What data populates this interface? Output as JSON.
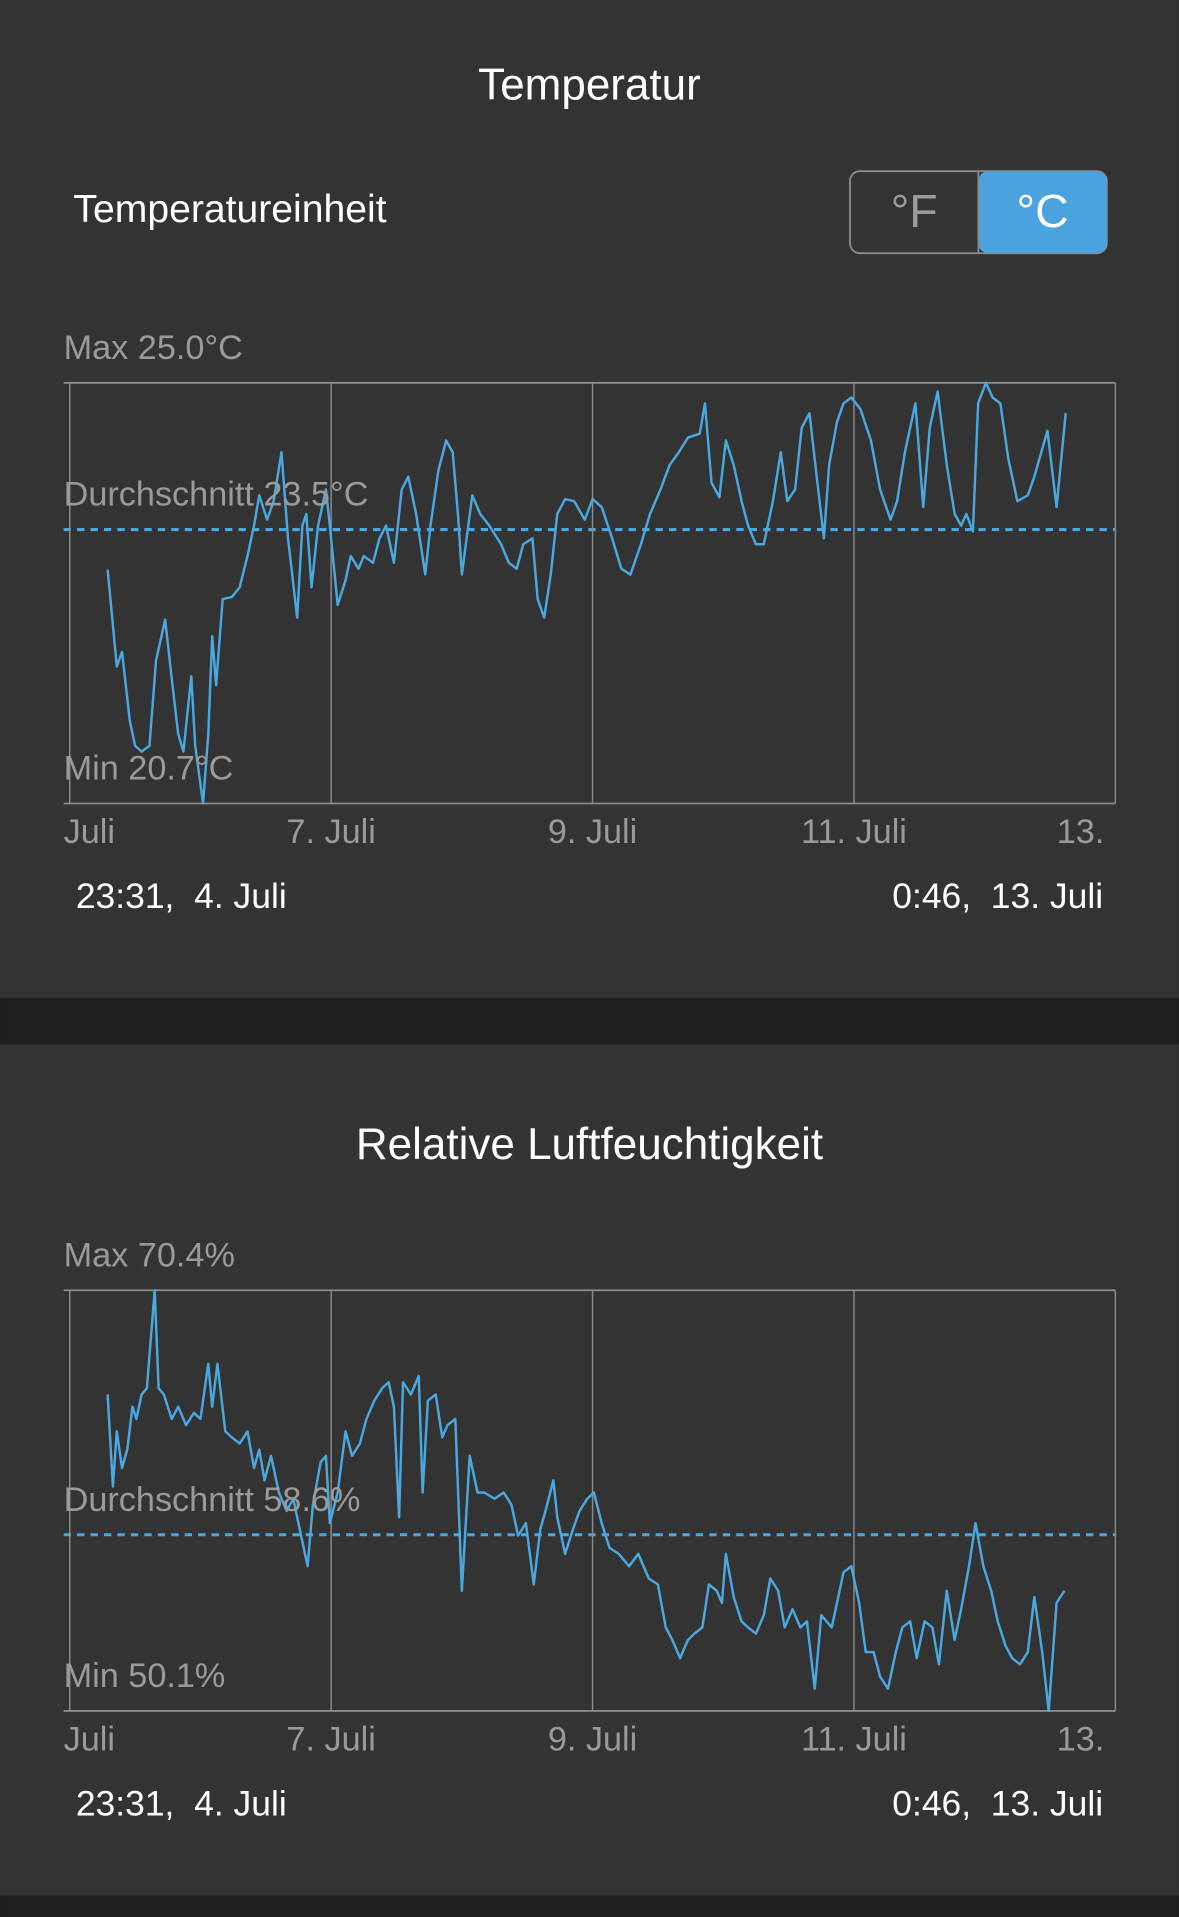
{
  "unit_setting": {
    "label": "Temperatureinheit",
    "options": [
      "°F",
      "°C"
    ],
    "selected": "°C"
  },
  "chart_data": [
    {
      "type": "line",
      "title": "Temperatur",
      "xlim": [
        5,
        13
      ],
      "xticks": [
        {
          "value": 5,
          "label": "Juli"
        },
        {
          "value": 7,
          "label": "7. Juli"
        },
        {
          "value": 9,
          "label": "9. Juli"
        },
        {
          "value": 11,
          "label": "11. Juli"
        },
        {
          "value": 13,
          "label": "13."
        }
      ],
      "ylim": [
        20.7,
        25.0
      ],
      "yticks": [
        {
          "value": 20.7,
          "label": "Min 20.7°C"
        },
        {
          "value": 23.5,
          "label": "Durchschnitt 23.5°C"
        },
        {
          "value": 25.0,
          "label": "Max 25.0°C"
        }
      ],
      "range_start": "23:31,  4. Juli",
      "range_end": "0:46,  13. Juli",
      "series": [
        {
          "color": "#4aa8e0",
          "x": [
            5.29,
            5.36,
            5.4,
            5.46,
            5.5,
            5.55,
            5.61,
            5.66,
            5.73,
            5.78,
            5.83,
            5.87,
            5.93,
            5.96,
            6.02,
            6.06,
            6.09,
            6.12,
            6.17,
            6.24,
            6.3,
            6.36,
            6.41,
            6.45,
            6.51,
            6.56,
            6.62,
            6.67,
            6.74,
            6.78,
            6.81,
            6.85,
            6.9,
            6.96,
            6.99,
            7.05,
            7.11,
            7.15,
            7.21,
            7.25,
            7.32,
            7.37,
            7.42,
            7.48,
            7.54,
            7.59,
            7.65,
            7.72,
            7.76,
            7.82,
            7.88,
            7.93,
            7.97,
            8.0,
            8.08,
            8.14,
            8.21,
            8.3,
            8.36,
            8.42,
            8.47,
            8.54,
            8.58,
            8.63,
            8.68,
            8.73,
            8.79,
            8.86,
            8.94,
            9.0,
            9.07,
            9.15,
            9.22,
            9.29,
            9.37,
            9.44,
            9.52,
            9.59,
            9.66,
            9.73,
            9.82,
            9.86,
            9.91,
            9.97,
            10.02,
            10.08,
            10.14,
            10.19,
            10.25,
            10.31,
            10.38,
            10.44,
            10.49,
            10.55,
            10.6,
            10.66,
            10.72,
            10.77,
            10.81,
            10.87,
            10.92,
            10.98,
            11.05,
            11.13,
            11.2,
            11.28,
            11.33,
            11.39,
            11.47,
            11.53,
            11.58,
            11.64,
            11.71,
            11.77,
            11.82,
            11.86,
            11.91,
            11.95,
            12.01,
            12.06,
            12.12,
            12.18,
            12.25,
            12.33,
            12.38,
            12.48,
            12.55,
            12.62
          ],
          "values": [
            23.09,
            22.1,
            22.25,
            21.54,
            21.29,
            21.23,
            21.29,
            22.16,
            22.58,
            21.98,
            21.41,
            21.23,
            22.0,
            21.29,
            20.7,
            21.41,
            22.41,
            21.91,
            22.79,
            22.81,
            22.91,
            23.23,
            23.54,
            23.85,
            23.6,
            23.79,
            24.29,
            23.41,
            22.6,
            23.54,
            23.66,
            22.91,
            23.54,
            23.91,
            23.54,
            22.73,
            22.98,
            23.23,
            23.1,
            23.23,
            23.16,
            23.41,
            23.54,
            23.16,
            23.91,
            24.04,
            23.66,
            23.04,
            23.54,
            24.1,
            24.41,
            24.29,
            23.66,
            23.04,
            23.85,
            23.66,
            23.54,
            23.35,
            23.16,
            23.1,
            23.35,
            23.41,
            22.79,
            22.6,
            23.04,
            23.66,
            23.81,
            23.79,
            23.6,
            23.81,
            23.73,
            23.41,
            23.1,
            23.04,
            23.35,
            23.66,
            23.91,
            24.16,
            24.29,
            24.44,
            24.48,
            24.79,
            23.98,
            23.83,
            24.41,
            24.16,
            23.79,
            23.54,
            23.35,
            23.35,
            23.79,
            24.29,
            23.79,
            23.91,
            24.54,
            24.69,
            23.98,
            23.41,
            24.16,
            24.6,
            24.79,
            24.85,
            24.73,
            24.41,
            23.91,
            23.6,
            23.79,
            24.29,
            24.79,
            23.73,
            24.54,
            24.91,
            24.16,
            23.66,
            23.54,
            23.66,
            23.48,
            24.79,
            25.0,
            24.85,
            24.79,
            24.23,
            23.79,
            23.85,
            24.04,
            24.51,
            23.73,
            24.69
          ]
        }
      ]
    },
    {
      "type": "line",
      "title": "Relative Luftfeuchtigkeit",
      "xlim": [
        5,
        13
      ],
      "xticks": [
        {
          "value": 5,
          "label": "Juli"
        },
        {
          "value": 7,
          "label": "7. Juli"
        },
        {
          "value": 9,
          "label": "9. Juli"
        },
        {
          "value": 11,
          "label": "11. Juli"
        },
        {
          "value": 13,
          "label": "13."
        }
      ],
      "ylim": [
        50.1,
        70.4
      ],
      "yticks": [
        {
          "value": 50.1,
          "label": "Min 50.1%"
        },
        {
          "value": 58.6,
          "label": "Durchschnitt 58.6%"
        },
        {
          "value": 70.4,
          "label": "Max 70.4%"
        }
      ],
      "range_start": "23:31,  4. Juli",
      "range_end": "0:46,  13. Juli",
      "series": [
        {
          "color": "#4aa8e0",
          "x": [
            5.29,
            5.33,
            5.36,
            5.4,
            5.44,
            5.48,
            5.51,
            5.55,
            5.59,
            5.65,
            5.68,
            5.72,
            5.78,
            5.83,
            5.89,
            5.95,
            6.0,
            6.06,
            6.09,
            6.13,
            6.19,
            6.24,
            6.3,
            6.36,
            6.41,
            6.45,
            6.49,
            6.54,
            6.6,
            6.66,
            6.71,
            6.77,
            6.82,
            6.86,
            6.92,
            6.96,
            6.99,
            7.05,
            7.11,
            7.16,
            7.22,
            7.27,
            7.33,
            7.39,
            7.44,
            7.48,
            7.52,
            7.55,
            7.61,
            7.67,
            7.7,
            7.74,
            7.8,
            7.85,
            7.89,
            7.95,
            8.0,
            8.06,
            8.12,
            8.17,
            8.25,
            8.32,
            8.38,
            8.43,
            8.49,
            8.55,
            8.6,
            8.64,
            8.7,
            8.73,
            8.79,
            8.85,
            8.9,
            8.96,
            9.01,
            9.07,
            9.13,
            9.2,
            9.28,
            9.35,
            9.43,
            9.5,
            9.56,
            9.61,
            9.67,
            9.73,
            9.78,
            9.84,
            9.89,
            9.95,
            9.99,
            10.02,
            10.08,
            10.14,
            10.19,
            10.25,
            10.31,
            10.36,
            10.42,
            10.47,
            10.53,
            10.59,
            10.64,
            10.7,
            10.75,
            10.83,
            10.87,
            10.92,
            10.98,
            11.04,
            11.09,
            11.15,
            11.2,
            11.26,
            11.32,
            11.37,
            11.43,
            11.48,
            11.54,
            11.6,
            11.65,
            11.71,
            11.77,
            11.82,
            11.88,
            11.93,
            11.99,
            12.05,
            12.1,
            12.16,
            12.21,
            12.27,
            12.33,
            12.38,
            12.44,
            12.49,
            12.55,
            12.61
          ],
          "values": [
            65.37,
            60.93,
            63.59,
            61.82,
            62.71,
            64.78,
            64.19,
            65.37,
            65.67,
            70.4,
            65.67,
            65.37,
            64.19,
            64.78,
            63.89,
            64.48,
            64.19,
            66.85,
            64.78,
            66.85,
            63.59,
            63.3,
            63.0,
            63.59,
            61.82,
            62.71,
            61.23,
            62.41,
            60.64,
            59.75,
            60.34,
            58.56,
            57.08,
            60.04,
            62.11,
            62.41,
            59.16,
            60.64,
            63.59,
            62.41,
            63.0,
            64.19,
            65.07,
            65.67,
            65.96,
            64.78,
            59.45,
            65.96,
            65.37,
            66.26,
            60.64,
            65.07,
            65.37,
            63.3,
            63.89,
            64.19,
            55.9,
            62.41,
            60.64,
            60.64,
            60.34,
            60.64,
            60.04,
            58.56,
            59.16,
            56.2,
            58.86,
            59.75,
            61.23,
            59.45,
            57.68,
            58.86,
            59.75,
            60.34,
            60.64,
            59.16,
            57.97,
            57.68,
            57.08,
            57.68,
            56.49,
            56.2,
            54.13,
            53.53,
            52.65,
            53.53,
            53.83,
            54.13,
            56.2,
            55.9,
            55.31,
            57.68,
            55.6,
            54.42,
            54.13,
            53.83,
            54.72,
            56.49,
            55.9,
            54.13,
            55.01,
            54.13,
            54.42,
            51.17,
            54.72,
            54.13,
            55.31,
            56.79,
            57.08,
            55.31,
            52.94,
            52.94,
            51.76,
            51.17,
            52.94,
            54.13,
            54.42,
            52.65,
            54.42,
            54.13,
            52.35,
            55.9,
            53.53,
            55.01,
            57.08,
            59.16,
            57.08,
            55.9,
            54.42,
            53.24,
            52.65,
            52.35,
            52.94,
            55.6,
            52.94,
            50.1,
            55.31,
            55.9
          ]
        }
      ]
    }
  ]
}
